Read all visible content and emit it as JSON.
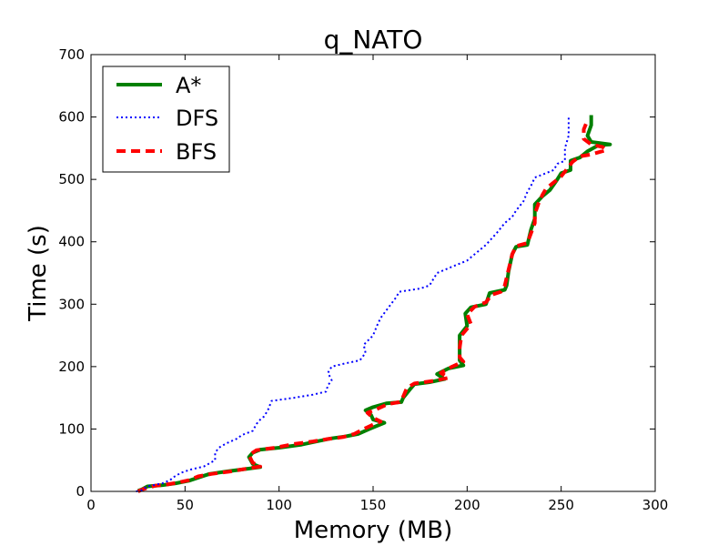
{
  "chart_data": {
    "type": "line",
    "title": "q_NATO",
    "xlabel": "Memory (MB)",
    "ylabel": "Time (s)",
    "xlim": [
      0,
      300
    ],
    "ylim": [
      0,
      700
    ],
    "xticks": [
      "0",
      "50",
      "100",
      "150",
      "200",
      "250",
      "300"
    ],
    "yticks": [
      "0",
      "100",
      "200",
      "300",
      "400",
      "500",
      "600",
      "700"
    ],
    "grid": false,
    "legend_position": "top-left",
    "series": [
      {
        "name": "A*",
        "color": "#008000",
        "style": "solid",
        "points": [
          [
            25,
            1
          ],
          [
            27,
            3
          ],
          [
            30,
            8
          ],
          [
            38,
            10
          ],
          [
            45,
            13
          ],
          [
            52,
            17
          ],
          [
            58,
            23
          ],
          [
            63,
            28
          ],
          [
            72,
            32
          ],
          [
            80,
            35
          ],
          [
            90,
            39
          ],
          [
            86,
            44
          ],
          [
            84,
            55
          ],
          [
            86,
            62
          ],
          [
            90,
            67
          ],
          [
            100,
            70
          ],
          [
            112,
            75
          ],
          [
            120,
            80
          ],
          [
            128,
            85
          ],
          [
            135,
            88
          ],
          [
            142,
            92
          ],
          [
            148,
            100
          ],
          [
            156,
            110
          ],
          [
            150,
            115
          ],
          [
            149,
            122
          ],
          [
            146,
            130
          ],
          [
            150,
            135
          ],
          [
            157,
            141
          ],
          [
            165,
            143
          ],
          [
            166,
            150
          ],
          [
            170,
            165
          ],
          [
            172,
            172
          ],
          [
            180,
            175
          ],
          [
            188,
            180
          ],
          [
            184,
            188
          ],
          [
            190,
            197
          ],
          [
            198,
            202
          ],
          [
            196,
            210
          ],
          [
            196,
            230
          ],
          [
            196,
            250
          ],
          [
            200,
            265
          ],
          [
            199,
            285
          ],
          [
            202,
            295
          ],
          [
            210,
            300
          ],
          [
            212,
            318
          ],
          [
            220,
            323
          ],
          [
            221,
            330
          ],
          [
            222,
            352
          ],
          [
            224,
            380
          ],
          [
            226,
            392
          ],
          [
            232,
            395
          ],
          [
            234,
            420
          ],
          [
            236,
            437
          ],
          [
            236,
            460
          ],
          [
            240,
            473
          ],
          [
            244,
            483
          ],
          [
            248,
            500
          ],
          [
            250,
            510
          ],
          [
            255,
            515
          ],
          [
            255,
            530
          ],
          [
            260,
            535
          ],
          [
            264,
            545
          ],
          [
            270,
            555
          ],
          [
            276,
            556
          ],
          [
            266,
            560
          ],
          [
            264,
            570
          ],
          [
            266,
            587
          ],
          [
            266,
            603
          ]
        ]
      },
      {
        "name": "DFS",
        "color": "#0000ff",
        "style": "dotted",
        "points": [
          [
            24,
            0
          ],
          [
            27,
            2
          ],
          [
            30,
            8
          ],
          [
            38,
            13
          ],
          [
            42,
            18
          ],
          [
            44,
            23
          ],
          [
            48,
            30
          ],
          [
            53,
            35
          ],
          [
            60,
            40
          ],
          [
            66,
            50
          ],
          [
            66,
            62
          ],
          [
            68,
            70
          ],
          [
            72,
            77
          ],
          [
            78,
            85
          ],
          [
            80,
            90
          ],
          [
            86,
            97
          ],
          [
            88,
            108
          ],
          [
            90,
            115
          ],
          [
            92,
            120
          ],
          [
            94,
            130
          ],
          [
            96,
            145
          ],
          [
            108,
            150
          ],
          [
            118,
            155
          ],
          [
            125,
            160
          ],
          [
            126,
            170
          ],
          [
            128,
            178
          ],
          [
            126,
            190
          ],
          [
            128,
            200
          ],
          [
            135,
            205
          ],
          [
            143,
            210
          ],
          [
            146,
            222
          ],
          [
            145,
            235
          ],
          [
            150,
            250
          ],
          [
            152,
            265
          ],
          [
            154,
            278
          ],
          [
            157,
            290
          ],
          [
            162,
            310
          ],
          [
            164,
            320
          ],
          [
            175,
            325
          ],
          [
            180,
            330
          ],
          [
            182,
            340
          ],
          [
            184,
            350
          ],
          [
            192,
            360
          ],
          [
            200,
            370
          ],
          [
            204,
            380
          ],
          [
            210,
            395
          ],
          [
            216,
            415
          ],
          [
            220,
            430
          ],
          [
            224,
            440
          ],
          [
            226,
            450
          ],
          [
            230,
            465
          ],
          [
            232,
            480
          ],
          [
            234,
            490
          ],
          [
            236,
            503
          ],
          [
            242,
            510
          ],
          [
            246,
            515
          ],
          [
            248,
            525
          ],
          [
            252,
            530
          ],
          [
            252,
            550
          ],
          [
            254,
            570
          ],
          [
            254,
            585
          ],
          [
            254,
            600
          ]
        ]
      },
      {
        "name": "BFS",
        "color": "#ff0000",
        "style": "dashed",
        "points": [
          [
            25,
            0
          ],
          [
            28,
            4
          ],
          [
            34,
            9
          ],
          [
            40,
            11
          ],
          [
            46,
            14
          ],
          [
            52,
            18
          ],
          [
            57,
            24
          ],
          [
            64,
            28
          ],
          [
            74,
            32
          ],
          [
            82,
            36
          ],
          [
            90,
            40
          ],
          [
            86,
            46
          ],
          [
            84,
            58
          ],
          [
            88,
            66
          ],
          [
            98,
            70
          ],
          [
            108,
            76
          ],
          [
            118,
            80
          ],
          [
            126,
            84
          ],
          [
            134,
            87
          ],
          [
            140,
            92
          ],
          [
            145,
            100
          ],
          [
            150,
            107
          ],
          [
            154,
            112
          ],
          [
            150,
            118
          ],
          [
            147,
            126
          ],
          [
            152,
            132
          ],
          [
            158,
            140
          ],
          [
            164,
            143
          ],
          [
            166,
            152
          ],
          [
            168,
            166
          ],
          [
            172,
            173
          ],
          [
            182,
            177
          ],
          [
            190,
            182
          ],
          [
            186,
            190
          ],
          [
            192,
            200
          ],
          [
            198,
            208
          ],
          [
            196,
            215
          ],
          [
            196,
            230
          ],
          [
            197,
            250
          ],
          [
            202,
            268
          ],
          [
            200,
            284
          ],
          [
            204,
            296
          ],
          [
            210,
            303
          ],
          [
            213,
            315
          ],
          [
            218,
            320
          ],
          [
            220,
            330
          ],
          [
            222,
            355
          ],
          [
            224,
            380
          ],
          [
            226,
            393
          ],
          [
            232,
            398
          ],
          [
            236,
            430
          ],
          [
            236,
            445
          ],
          [
            238,
            462
          ],
          [
            240,
            475
          ],
          [
            242,
            485
          ],
          [
            246,
            495
          ],
          [
            250,
            505
          ],
          [
            254,
            520
          ],
          [
            256,
            528
          ],
          [
            260,
            537
          ],
          [
            266,
            540
          ],
          [
            274,
            547
          ],
          [
            272,
            552
          ],
          [
            266,
            556
          ],
          [
            262,
            565
          ],
          [
            262,
            580
          ],
          [
            264,
            595
          ]
        ]
      }
    ]
  }
}
